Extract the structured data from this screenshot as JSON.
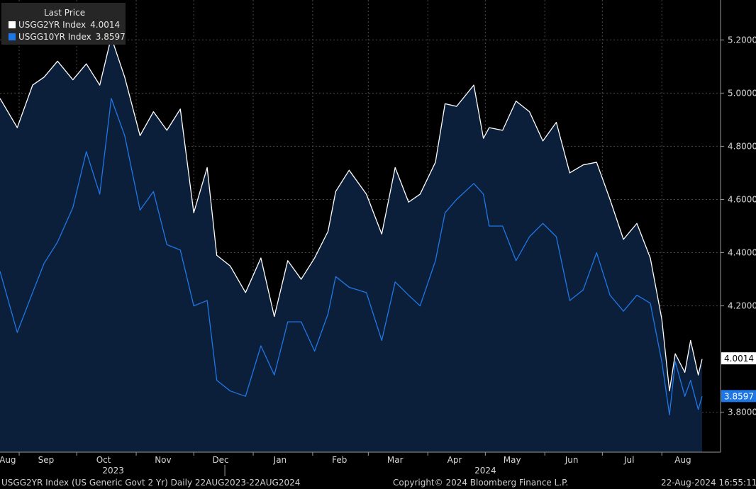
{
  "legend": {
    "header": "Last Price",
    "items": [
      {
        "name": "USGG2YR Index",
        "value": "4.0014",
        "color": "#ffffff"
      },
      {
        "name": "USGG10YR Index",
        "value": "3.8597",
        "color": "#1f77e6"
      }
    ]
  },
  "footer": {
    "description": "USGG2YR Index (US Generic Govt 2 Yr)  Daily 22AUG2023-22AUG2024",
    "copyright": "Copyright© 2024 Bloomberg Finance L.P.",
    "timestamp": "22-Aug-2024 16:55:11"
  },
  "colors": {
    "background": "#000000",
    "area_fill": "#0b1f3a",
    "series_2yr": "#ffffff",
    "series_10yr": "#1f77e6",
    "grid": "#555555"
  },
  "chart_data": {
    "type": "area",
    "title": "",
    "xlabel": "",
    "ylabel": "",
    "ylim": [
      3.65,
      5.35
    ],
    "grid": true,
    "legend_position": "top-left",
    "y_ticks": [
      "5.2000",
      "5.0000",
      "4.8000",
      "4.6000",
      "4.4000",
      "4.2000",
      "3.8000"
    ],
    "x_ticks": [
      "Aug",
      "Sep",
      "Oct",
      "Nov",
      "Dec",
      "Jan",
      "Feb",
      "Mar",
      "Apr",
      "May",
      "Jun",
      "Jul",
      "Aug"
    ],
    "year_labels": [
      "2023",
      "2024"
    ],
    "last_value_labels": [
      {
        "series": "USGG2YR Index",
        "value": "4.0014"
      },
      {
        "series": "USGG10YR Index",
        "value": "3.8597"
      }
    ],
    "x": [
      "2023-08-22",
      "2023-08-31",
      "2023-09-08",
      "2023-09-14",
      "2023-09-21",
      "2023-09-29",
      "2023-10-06",
      "2023-10-13",
      "2023-10-19",
      "2023-10-26",
      "2023-11-03",
      "2023-11-10",
      "2023-11-17",
      "2023-11-24",
      "2023-12-01",
      "2023-12-08",
      "2023-12-13",
      "2023-12-20",
      "2023-12-28",
      "2024-01-05",
      "2024-01-12",
      "2024-01-19",
      "2024-01-26",
      "2024-02-02",
      "2024-02-09",
      "2024-02-13",
      "2024-02-20",
      "2024-02-29",
      "2024-03-08",
      "2024-03-15",
      "2024-03-22",
      "2024-03-28",
      "2024-04-05",
      "2024-04-10",
      "2024-04-16",
      "2024-04-25",
      "2024-04-30",
      "2024-05-03",
      "2024-05-10",
      "2024-05-17",
      "2024-05-24",
      "2024-05-31",
      "2024-06-07",
      "2024-06-14",
      "2024-06-21",
      "2024-06-28",
      "2024-07-05",
      "2024-07-12",
      "2024-07-19",
      "2024-07-26",
      "2024-08-01",
      "2024-08-05",
      "2024-08-08",
      "2024-08-13",
      "2024-08-16",
      "2024-08-20",
      "2024-08-22"
    ],
    "series": [
      {
        "name": "USGG2YR Index",
        "color": "#ffffff",
        "values": [
          4.98,
          4.87,
          5.03,
          5.06,
          5.12,
          5.05,
          5.11,
          5.03,
          5.21,
          5.06,
          4.84,
          4.93,
          4.86,
          4.94,
          4.55,
          4.72,
          4.39,
          4.35,
          4.25,
          4.38,
          4.16,
          4.37,
          4.3,
          4.38,
          4.48,
          4.63,
          4.71,
          4.62,
          4.47,
          4.72,
          4.59,
          4.62,
          4.74,
          4.96,
          4.95,
          5.03,
          4.83,
          4.87,
          4.86,
          4.97,
          4.93,
          4.82,
          4.89,
          4.7,
          4.73,
          4.74,
          4.6,
          4.45,
          4.51,
          4.38,
          4.15,
          3.88,
          4.02,
          3.95,
          4.07,
          3.94,
          4.0
        ]
      },
      {
        "name": "USGG10YR Index",
        "color": "#1f77e6",
        "values": [
          4.33,
          4.1,
          4.25,
          4.36,
          4.44,
          4.57,
          4.78,
          4.62,
          4.98,
          4.84,
          4.56,
          4.63,
          4.43,
          4.41,
          4.2,
          4.22,
          3.92,
          3.88,
          3.86,
          4.05,
          3.94,
          4.14,
          4.14,
          4.03,
          4.17,
          4.31,
          4.27,
          4.25,
          4.07,
          4.29,
          4.24,
          4.2,
          4.37,
          4.55,
          4.6,
          4.66,
          4.62,
          4.5,
          4.5,
          4.37,
          4.46,
          4.51,
          4.46,
          4.22,
          4.26,
          4.4,
          4.24,
          4.18,
          4.24,
          4.21,
          3.99,
          3.79,
          3.99,
          3.86,
          3.92,
          3.81,
          3.86
        ]
      }
    ]
  }
}
